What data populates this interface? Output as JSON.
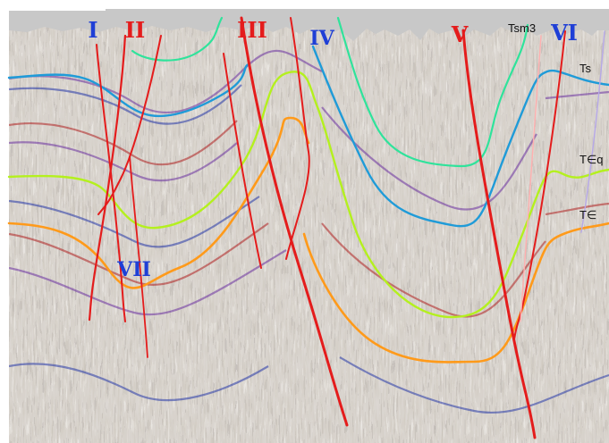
{
  "colors": {
    "background": "#ffffff",
    "top_band": "#c8c8c8",
    "noise_light": "#d8d4cc",
    "noise_dark": "#6e6a66",
    "fault_red": "#e41c1c",
    "fault_pink": "#ffb0b0",
    "fault_lavender": "#b6a8e8",
    "roman_blue": "#1f3fd6",
    "roman_red": "#e41c1c",
    "horizon_tsm3": "#2fe39b",
    "horizon_ts": "#1f9bd8",
    "horizon_teq": "#b4f01e",
    "horizon_te": "#ff9a1a"
  },
  "fault_labels": [
    {
      "text": "I",
      "color": "blue"
    },
    {
      "text": "II",
      "color": "red"
    },
    {
      "text": "III",
      "color": "red"
    },
    {
      "text": "IV",
      "color": "blue"
    },
    {
      "text": "V",
      "color": "red"
    },
    {
      "text": "VI",
      "color": "blue"
    },
    {
      "text": "VII",
      "color": "blue"
    }
  ],
  "horizon_labels": [
    {
      "text": "Tsm3"
    },
    {
      "text": "Ts"
    },
    {
      "text": "T∈q"
    },
    {
      "text": "T∈"
    }
  ]
}
